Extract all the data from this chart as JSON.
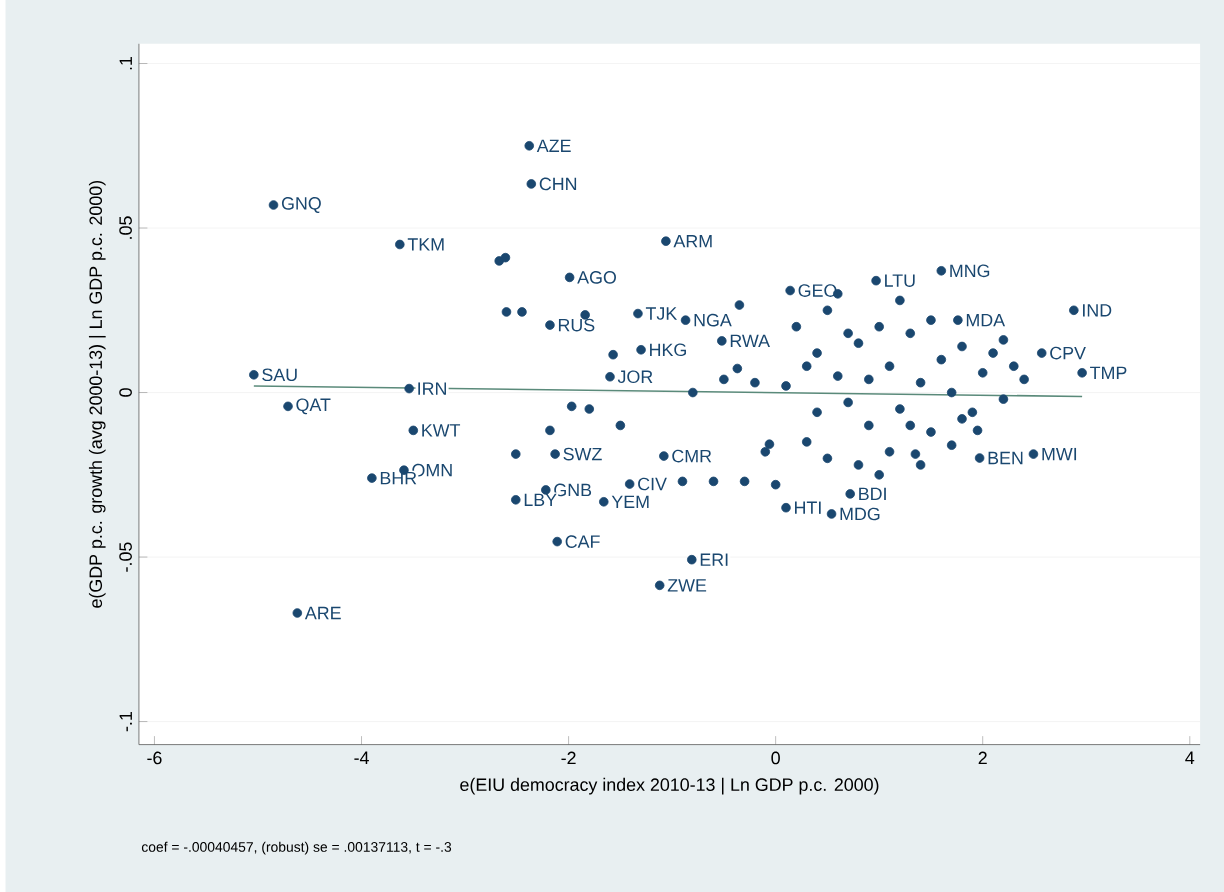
{
  "chart_data": {
    "type": "scatter",
    "xlabel": "e(EIU democracy index 2010-13 | Ln GDP p.c. 2000)",
    "ylabel": "e(GDP p.c. growth (avg 2000-13) | Ln GDP p.c. 2000)",
    "annotations": [
      "coef = -.00040457, (robust) se = .00137113, t = -.3"
    ],
    "xlim": [
      -6.15,
      4.1
    ],
    "ylim": [
      -0.107,
      0.106
    ],
    "xticks": [
      -6,
      -4,
      -2,
      0,
      2,
      4
    ],
    "yticks": [
      {
        "value": -0.1,
        "label": "-.1"
      },
      {
        "value": -0.05,
        "label": "-.05"
      },
      {
        "value": 0,
        "label": "0"
      },
      {
        "value": 0.05,
        "label": ".05"
      },
      {
        "value": 0.1,
        "label": ".1"
      }
    ],
    "grid": "y",
    "series": [
      {
        "marker": "circle",
        "color": "#1a476f",
        "x": [
          -2.38,
          -2.36,
          -4.85,
          -3.63,
          -2.67,
          -2.61,
          -1.99,
          -1.06,
          -2.6,
          -2.45,
          -2.18,
          -1.84,
          -1.33,
          -0.87,
          -1.57,
          -1.3,
          -1.6,
          -0.52,
          -0.35,
          0.14,
          0.97,
          1.6,
          1.76,
          2.88,
          2.57,
          2.96,
          -5.04,
          -4.71,
          -3.54,
          -3.5,
          -3.59,
          -3.9,
          -4.62,
          -1.97,
          -2.51,
          -2.18,
          -2.13,
          -2.22,
          -2.51,
          -1.66,
          -1.41,
          -2.11,
          -1.08,
          -0.81,
          -1.12,
          0.1,
          0.54,
          0.72,
          1.35,
          1.97,
          2.49,
          1.95,
          -0.06,
          -0.37,
          0.2,
          0.4,
          0.5,
          0.6,
          0.7,
          0.8,
          0.9,
          1.0,
          1.1,
          1.2,
          1.3,
          1.4,
          1.5,
          1.6,
          1.7,
          1.8,
          1.9,
          2.0,
          2.1,
          2.2,
          2.3,
          0.3,
          0.5,
          0.8,
          1.1,
          0.6,
          1.2,
          1.5,
          0.1,
          0.3,
          1.0,
          1.4,
          1.7,
          0.9,
          1.3,
          2.2,
          2.4,
          0.7,
          1.8,
          0.4,
          -0.2,
          -0.5,
          -0.1,
          -0.3,
          -0.6,
          0.0,
          -0.9,
          -1.5,
          -1.8,
          -0.8
        ],
        "values": [
          0.075,
          0.0634,
          0.057,
          0.045,
          0.04,
          0.041,
          0.035,
          0.046,
          0.0245,
          0.0245,
          0.0205,
          0.0236,
          0.024,
          0.022,
          0.0115,
          0.013,
          0.0048,
          0.0157,
          0.0266,
          0.031,
          0.034,
          0.037,
          0.022,
          0.025,
          0.012,
          0.006,
          0.0054,
          -0.0042,
          0.0012,
          -0.0115,
          -0.0236,
          -0.026,
          -0.067,
          -0.0042,
          -0.0187,
          -0.0115,
          -0.0187,
          -0.0296,
          -0.0326,
          -0.0332,
          -0.0278,
          -0.0453,
          -0.0193,
          -0.0508,
          -0.0586,
          -0.035,
          -0.0369,
          -0.0308,
          -0.0187,
          -0.0199,
          -0.0187,
          -0.0115,
          -0.0157,
          0.0073,
          0.02,
          0.012,
          0.025,
          0.005,
          -0.003,
          0.015,
          -0.01,
          0.02,
          0.008,
          -0.005,
          0.018,
          0.003,
          -0.012,
          0.01,
          0.0,
          0.014,
          -0.006,
          0.006,
          0.012,
          -0.002,
          0.008,
          -0.015,
          -0.02,
          -0.022,
          -0.018,
          0.03,
          0.028,
          0.022,
          0.002,
          0.008,
          -0.025,
          -0.022,
          -0.016,
          0.004,
          -0.01,
          0.016,
          0.004,
          0.018,
          -0.008,
          -0.006,
          0.003,
          0.004,
          -0.018,
          -0.027,
          -0.027,
          -0.028,
          -0.027,
          -0.01,
          -0.005,
          0.0
        ],
        "value_labels": [
          "AZE",
          "CHN",
          "GNQ",
          "TKM",
          null,
          null,
          "AGO",
          "ARM",
          null,
          null,
          "RUS",
          null,
          "TJK",
          "NGA",
          null,
          "HKG",
          "JOR",
          "RWA",
          null,
          "GEO",
          "LTU",
          "MNG",
          "MDA",
          "IND",
          "CPV",
          "TMP",
          "SAU",
          "QAT",
          "IRN",
          "KWT",
          "OMN",
          "BHR",
          "ARE",
          null,
          null,
          null,
          "SWZ",
          "GNB",
          "LBY",
          "YEM",
          "CIV",
          "CAF",
          "CMR",
          "ERI",
          "ZWE",
          "HTI",
          "MDG",
          "BDI",
          null,
          "BEN",
          "MWI",
          null,
          null,
          null,
          null,
          null,
          null,
          null,
          null,
          null,
          null,
          null,
          null,
          null,
          null,
          null,
          null,
          null,
          null,
          null,
          null,
          null,
          null,
          null,
          null,
          null,
          null,
          null,
          null,
          null,
          null,
          null,
          null,
          null,
          null,
          null,
          null,
          null,
          null,
          null,
          null,
          null,
          null,
          null,
          null,
          null,
          null,
          null,
          null,
          null,
          null,
          null,
          null,
          null
        ]
      },
      {
        "type": "line",
        "marker": "none",
        "color": "#5a8a7a",
        "x": [
          -5.04,
          2.96
        ],
        "values": [
          0.002,
          -0.0012
        ]
      }
    ]
  }
}
